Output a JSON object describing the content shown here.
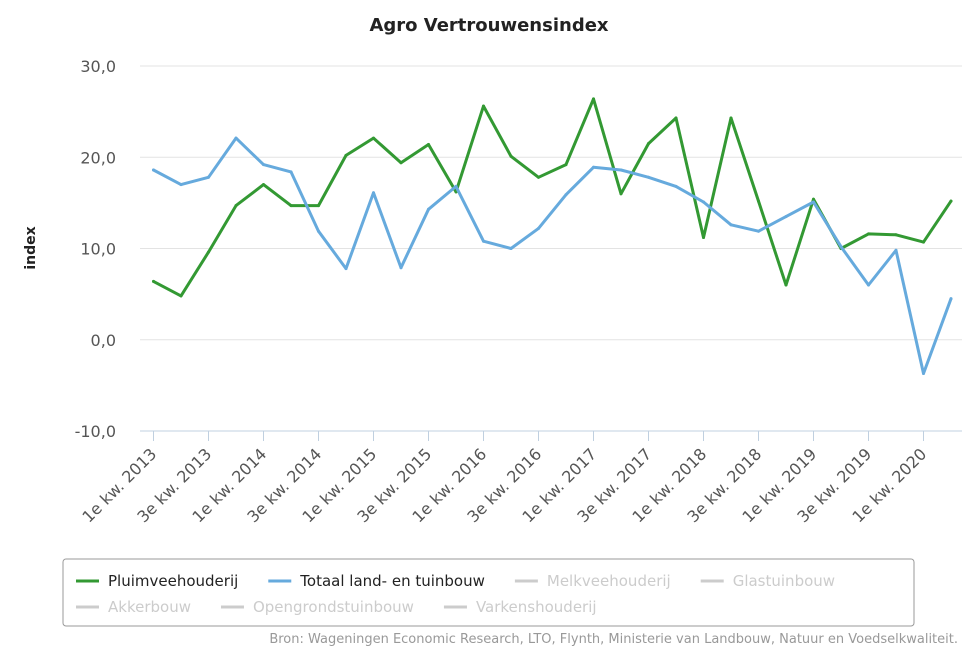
{
  "chart_data": {
    "type": "line",
    "title": "Agro Vertrouwensindex",
    "ylabel": "index",
    "xlabel": "",
    "ylim": [
      -10,
      30
    ],
    "yticks": [
      "30,0",
      "20,0",
      "10,0",
      "0,0",
      "-10,0"
    ],
    "ytick_values": [
      30,
      20,
      10,
      0,
      -10
    ],
    "categories": [
      "1e kw. 2013",
      "2e kw. 2013",
      "3e kw. 2013",
      "4e kw. 2013",
      "1e kw. 2014",
      "2e kw. 2014",
      "3e kw. 2014",
      "4e kw. 2014",
      "1e kw. 2015",
      "2e kw. 2015",
      "3e kw. 2015",
      "4e kw. 2015",
      "1e kw. 2016",
      "2e kw. 2016",
      "3e kw. 2016",
      "4e kw. 2016",
      "1e kw. 2017",
      "2e kw. 2017",
      "3e kw. 2017",
      "4e kw. 2017",
      "1e kw. 2018",
      "2e kw. 2018",
      "3e kw. 2018",
      "4e kw. 2018",
      "1e kw. 2019",
      "2e kw. 2019",
      "3e kw. 2019",
      "4e kw. 2019",
      "1e kw. 2020",
      "2e kw. 2020"
    ],
    "xtick_labels": [
      "1e kw. 2013",
      "3e kw. 2013",
      "1e kw. 2014",
      "3e kw. 2014",
      "1e kw. 2015",
      "3e kw. 2015",
      "1e kw. 2016",
      "3e kw. 2016",
      "1e kw. 2017",
      "3e kw. 2017",
      "1e kw. 2018",
      "3e kw. 2018",
      "1e kw. 2019",
      "3e kw. 2019",
      "1e kw. 2020"
    ],
    "grid": true,
    "series": [
      {
        "name": "Pluimveehouderij",
        "color": "#339933",
        "visible": true,
        "values": [
          6.4,
          4.8,
          9.6,
          14.7,
          17.0,
          14.7,
          14.7,
          20.2,
          22.1,
          19.4,
          21.4,
          16.2,
          25.6,
          20.1,
          17.8,
          19.2,
          26.4,
          16.0,
          21.5,
          24.3,
          11.2,
          24.3,
          15.2,
          6.0,
          15.4,
          10.0,
          11.6,
          11.5,
          10.7,
          15.2
        ]
      },
      {
        "name": "Totaal land- en tuinbouw",
        "color": "#66aadd",
        "visible": true,
        "values": [
          18.6,
          17.0,
          17.8,
          22.1,
          19.2,
          18.4,
          11.9,
          7.8,
          16.1,
          7.9,
          14.3,
          16.8,
          10.8,
          10.0,
          12.2,
          15.9,
          18.9,
          18.6,
          17.8,
          16.8,
          15.1,
          12.6,
          11.9,
          13.5,
          15.1,
          10.2,
          6.0,
          9.8,
          -3.7,
          4.5
        ]
      }
    ],
    "legend": {
      "placement": "bottom",
      "items": [
        {
          "label": "Pluimveehouderij",
          "color": "#339933",
          "active": true
        },
        {
          "label": "Totaal land- en tuinbouw",
          "color": "#66aadd",
          "active": true
        },
        {
          "label": "Melkveehouderij",
          "color": "#cccccc",
          "active": false
        },
        {
          "label": "Glastuinbouw",
          "color": "#cccccc",
          "active": false
        },
        {
          "label": "Akkerbouw",
          "color": "#cccccc",
          "active": false
        },
        {
          "label": "Opengrondstuinbouw",
          "color": "#cccccc",
          "active": false
        },
        {
          "label": "Varkenshouderij",
          "color": "#cccccc",
          "active": false
        }
      ]
    },
    "source": "Bron: Wageningen Economic Research, LTO, Flynth, Ministerie van Landbouw, Natuur en Voedselkwaliteit."
  }
}
